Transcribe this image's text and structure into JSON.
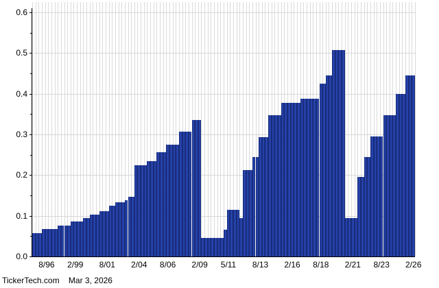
{
  "footer": {
    "source": "TickerTech.com",
    "date": "Mar 3, 2026"
  },
  "chart_data": {
    "type": "bar",
    "title": "",
    "xlabel": "",
    "ylabel": "",
    "ylim": [
      0,
      0.6
    ],
    "grid": true,
    "legend": "none",
    "bar_color": "#21409f",
    "grid_color": "#d9d9d9",
    "axis_color": "#000000",
    "y_tick_labels": [
      "0.6",
      "0.5",
      "0.4",
      "0.3",
      "0.2",
      "0.1",
      "0.0"
    ],
    "y_tick_values": [
      0.6,
      0.5,
      0.4,
      0.3,
      0.2,
      0.1,
      0.0
    ],
    "y_minor_ticks": [
      0.55,
      0.45,
      0.35,
      0.25,
      0.15,
      0.05
    ],
    "bar_count": 120,
    "x_ticks": [
      {
        "label": "8/96",
        "index": 4
      },
      {
        "label": "2/99",
        "index": 13
      },
      {
        "label": "8/01",
        "index": 23
      },
      {
        "label": "2/04",
        "index": 33
      },
      {
        "label": "8/06",
        "index": 42
      },
      {
        "label": "2/09",
        "index": 52
      },
      {
        "label": "5/11",
        "index": 61
      },
      {
        "label": "8/13",
        "index": 71
      },
      {
        "label": "2/16",
        "index": 81
      },
      {
        "label": "8/18",
        "index": 90
      },
      {
        "label": "2/21",
        "index": 100
      },
      {
        "label": "8/23",
        "index": 109
      },
      {
        "label": "2/26",
        "index": 119
      }
    ],
    "values": [
      0.0575,
      0.0575,
      0.0575,
      0.0675,
      0.0675,
      0.0675,
      0.0675,
      0.0675,
      0.0755,
      0.0755,
      0.0755,
      0.0755,
      0.086,
      0.086,
      0.086,
      0.086,
      0.094,
      0.094,
      0.103,
      0.103,
      0.103,
      0.112,
      0.112,
      0.112,
      0.124,
      0.124,
      0.134,
      0.134,
      0.134,
      0.139,
      0.146,
      0.146,
      0.225,
      0.225,
      0.225,
      0.225,
      0.235,
      0.235,
      0.235,
      0.256,
      0.256,
      0.256,
      0.275,
      0.275,
      0.275,
      0.275,
      0.306,
      0.306,
      0.306,
      0.306,
      0.336,
      0.336,
      0.336,
      0.045,
      0.045,
      0.045,
      0.045,
      0.045,
      0.045,
      0.045,
      0.066,
      0.115,
      0.115,
      0.115,
      0.115,
      0.094,
      0.2125,
      0.2125,
      0.2125,
      0.245,
      0.245,
      0.2925,
      0.2925,
      0.2925,
      0.3465,
      0.3465,
      0.3465,
      0.3465,
      0.378,
      0.378,
      0.378,
      0.378,
      0.378,
      0.378,
      0.3875,
      0.3875,
      0.3875,
      0.3875,
      0.3875,
      0.3875,
      0.4255,
      0.4255,
      0.4455,
      0.4455,
      0.5075,
      0.5075,
      0.5075,
      0.5075,
      0.095,
      0.095,
      0.095,
      0.095,
      0.1955,
      0.1955,
      0.245,
      0.245,
      0.295,
      0.295,
      0.295,
      0.295,
      0.3465,
      0.3465,
      0.3465,
      0.3465,
      0.4,
      0.4,
      0.4,
      0.4455,
      0.4455,
      0.4455
    ]
  }
}
